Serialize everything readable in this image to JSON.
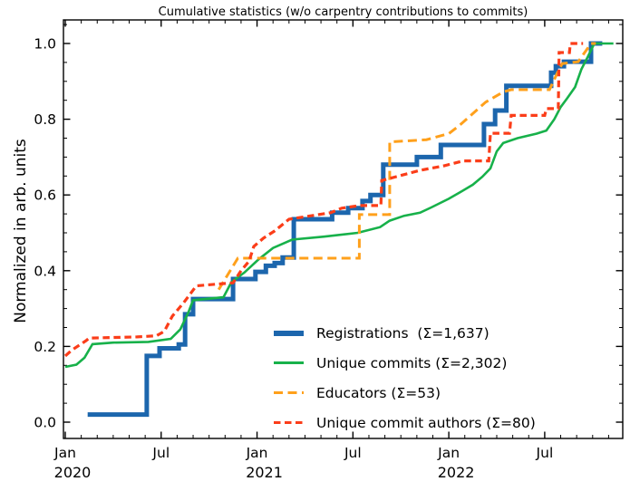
{
  "chart_data": {
    "type": "line",
    "title": "Cumulative statistics (w/o carpentry contributions to commits)",
    "xlabel": "",
    "ylabel": "Normalized in arb. units",
    "x_axis": {
      "unit": "month index from Jan 2020",
      "range_months": [
        0,
        34.9
      ],
      "minor_tick_every_months": 1,
      "major_ticks": [
        {
          "m": 0,
          "label": "Jan",
          "year": "2020"
        },
        {
          "m": 6,
          "label": "Jul"
        },
        {
          "m": 12,
          "label": "Jan",
          "year": "2021"
        },
        {
          "m": 18,
          "label": "Jul"
        },
        {
          "m": 24,
          "label": "Jan",
          "year": "2022"
        },
        {
          "m": 30,
          "label": "Jul"
        }
      ]
    },
    "y_axis": {
      "ticks": [
        "0.0",
        "0.2",
        "0.4",
        "0.6",
        "0.8",
        "1.0"
      ],
      "minor_step": 0.05,
      "lim": [
        -0.04,
        1.06
      ]
    },
    "grid": "off",
    "legend_position": "lower right inside, no frame",
    "series": [
      {
        "key": "registrations",
        "name": "Registrations  (Σ=1,637)",
        "total": 1637,
        "color": "#1c66ad",
        "line": "solid",
        "width": 5,
        "points": [
          [
            1.4,
            0.02
          ],
          [
            5.1,
            0.02
          ],
          [
            5.1,
            0.175
          ],
          [
            5.9,
            0.175
          ],
          [
            5.9,
            0.195
          ],
          [
            7.1,
            0.195
          ],
          [
            7.1,
            0.205
          ],
          [
            7.5,
            0.205
          ],
          [
            7.5,
            0.285
          ],
          [
            8.0,
            0.285
          ],
          [
            8.0,
            0.325
          ],
          [
            10.5,
            0.325
          ],
          [
            10.5,
            0.378
          ],
          [
            11.9,
            0.378
          ],
          [
            11.9,
            0.397
          ],
          [
            12.55,
            0.397
          ],
          [
            12.55,
            0.413
          ],
          [
            13.1,
            0.413
          ],
          [
            13.1,
            0.42
          ],
          [
            13.6,
            0.42
          ],
          [
            13.6,
            0.435
          ],
          [
            14.3,
            0.435
          ],
          [
            14.3,
            0.536
          ],
          [
            16.7,
            0.536
          ],
          [
            16.7,
            0.553
          ],
          [
            17.7,
            0.553
          ],
          [
            17.7,
            0.565
          ],
          [
            18.6,
            0.565
          ],
          [
            18.6,
            0.584
          ],
          [
            19.1,
            0.584
          ],
          [
            19.1,
            0.6
          ],
          [
            19.9,
            0.6
          ],
          [
            19.9,
            0.68
          ],
          [
            22.0,
            0.68
          ],
          [
            22.0,
            0.7
          ],
          [
            23.5,
            0.7
          ],
          [
            23.5,
            0.732
          ],
          [
            26.2,
            0.732
          ],
          [
            26.2,
            0.787
          ],
          [
            26.9,
            0.787
          ],
          [
            26.9,
            0.823
          ],
          [
            27.6,
            0.823
          ],
          [
            27.6,
            0.888
          ],
          [
            30.4,
            0.888
          ],
          [
            30.4,
            0.923
          ],
          [
            30.7,
            0.923
          ],
          [
            30.7,
            0.94
          ],
          [
            31.2,
            0.94
          ],
          [
            31.2,
            0.952
          ],
          [
            32.9,
            0.952
          ],
          [
            32.9,
            1.0
          ],
          [
            33.6,
            1.0
          ]
        ]
      },
      {
        "key": "unique-commits",
        "name": "Unique commits (Σ=2,302)",
        "total": 2302,
        "color": "#17b14a",
        "line": "solid",
        "width": 2.6,
        "points": [
          [
            0,
            0.146
          ],
          [
            0.7,
            0.152
          ],
          [
            1.2,
            0.17
          ],
          [
            1.7,
            0.206
          ],
          [
            3.0,
            0.21
          ],
          [
            5.2,
            0.212
          ],
          [
            6.6,
            0.22
          ],
          [
            7.2,
            0.245
          ],
          [
            7.7,
            0.29
          ],
          [
            8.0,
            0.322
          ],
          [
            9.9,
            0.33
          ],
          [
            10.4,
            0.37
          ],
          [
            11.2,
            0.395
          ],
          [
            12.1,
            0.43
          ],
          [
            13.0,
            0.46
          ],
          [
            14.2,
            0.482
          ],
          [
            16.2,
            0.49
          ],
          [
            18.3,
            0.5
          ],
          [
            19.7,
            0.515
          ],
          [
            20.3,
            0.532
          ],
          [
            21.2,
            0.545
          ],
          [
            22.2,
            0.553
          ],
          [
            22.9,
            0.567
          ],
          [
            24.0,
            0.59
          ],
          [
            24.7,
            0.607
          ],
          [
            25.5,
            0.627
          ],
          [
            26.1,
            0.648
          ],
          [
            26.6,
            0.67
          ],
          [
            27.0,
            0.715
          ],
          [
            27.4,
            0.737
          ],
          [
            28.3,
            0.75
          ],
          [
            29.5,
            0.762
          ],
          [
            30.1,
            0.77
          ],
          [
            30.6,
            0.8
          ],
          [
            31.0,
            0.832
          ],
          [
            31.4,
            0.855
          ],
          [
            31.9,
            0.885
          ],
          [
            32.3,
            0.932
          ],
          [
            32.7,
            0.965
          ],
          [
            33.1,
            1.0
          ],
          [
            34.3,
            1.0
          ]
        ]
      },
      {
        "key": "educators",
        "name": "Educators (Σ=53)",
        "total": 53,
        "color": "#ffa01b",
        "line": "dashed",
        "width": 3,
        "dash": "10 5.5",
        "points": [
          [
            9.6,
            0.35
          ],
          [
            10.8,
            0.433
          ],
          [
            18.4,
            0.433
          ],
          [
            18.4,
            0.548
          ],
          [
            20.3,
            0.548
          ],
          [
            20.3,
            0.74
          ],
          [
            22.6,
            0.746
          ],
          [
            24.0,
            0.762
          ],
          [
            24.7,
            0.785
          ],
          [
            26.3,
            0.845
          ],
          [
            27.4,
            0.872
          ],
          [
            27.9,
            0.878
          ],
          [
            30.3,
            0.878
          ],
          [
            30.9,
            0.932
          ],
          [
            31.1,
            0.947
          ],
          [
            32.1,
            0.952
          ],
          [
            32.9,
            1.0
          ],
          [
            33.2,
            1.0
          ]
        ]
      },
      {
        "key": "unique-commit-authors",
        "name": "Unique commit authors (Σ=80)",
        "total": 80,
        "color": "#fb3d19",
        "line": "dashed",
        "width": 3.2,
        "dash": "7.5 4.5",
        "points": [
          [
            0,
            0.175
          ],
          [
            0.4,
            0.19
          ],
          [
            1.3,
            0.215
          ],
          [
            1.5,
            0.222
          ],
          [
            4.5,
            0.225
          ],
          [
            5.7,
            0.228
          ],
          [
            6.2,
            0.24
          ],
          [
            6.7,
            0.28
          ],
          [
            7.4,
            0.315
          ],
          [
            8.2,
            0.36
          ],
          [
            10.5,
            0.368
          ],
          [
            11.0,
            0.4
          ],
          [
            11.5,
            0.425
          ],
          [
            11.8,
            0.464
          ],
          [
            12.4,
            0.486
          ],
          [
            13.1,
            0.505
          ],
          [
            14.0,
            0.536
          ],
          [
            16.6,
            0.553
          ],
          [
            17.3,
            0.565
          ],
          [
            18.4,
            0.572
          ],
          [
            19.75,
            0.572
          ],
          [
            19.8,
            0.638
          ],
          [
            21.4,
            0.656
          ],
          [
            22.2,
            0.665
          ],
          [
            23.7,
            0.677
          ],
          [
            24.9,
            0.69
          ],
          [
            26.5,
            0.69
          ],
          [
            26.6,
            0.763
          ],
          [
            27.8,
            0.763
          ],
          [
            27.9,
            0.81
          ],
          [
            30.0,
            0.81
          ],
          [
            30.1,
            0.828
          ],
          [
            30.85,
            0.828
          ],
          [
            30.9,
            0.976
          ],
          [
            31.55,
            0.976
          ],
          [
            31.6,
            1.0
          ],
          [
            32.4,
            1.0
          ]
        ]
      }
    ]
  }
}
